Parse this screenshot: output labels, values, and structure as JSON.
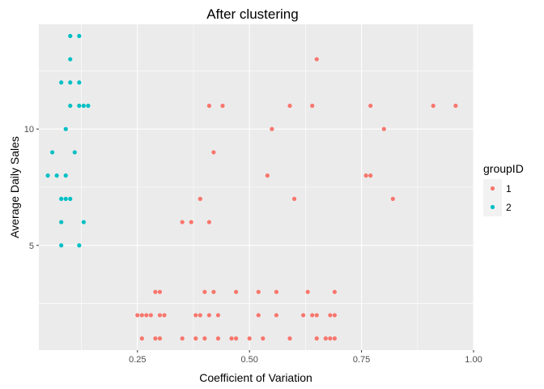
{
  "chart_data": {
    "type": "scatter",
    "title": "After clustering",
    "xlabel": "Coefficient of Variation",
    "ylabel": "Average Daily Sales",
    "xlim": [
      0.03,
      1.0
    ],
    "ylim": [
      0.5,
      14.5
    ],
    "x_ticks": [
      0.25,
      0.5,
      0.75,
      1.0
    ],
    "x_tick_labels": [
      "0.25",
      "0.50",
      "0.75",
      "1.00"
    ],
    "y_ticks": [
      5,
      10
    ],
    "y_tick_labels": [
      "5",
      "10"
    ],
    "grid": true,
    "legend": {
      "title": "groupID",
      "position": "right"
    },
    "series": [
      {
        "name": "1",
        "color": "#F8766D",
        "points": [
          [
            0.65,
            13
          ],
          [
            0.41,
            11
          ],
          [
            0.44,
            11
          ],
          [
            0.59,
            11
          ],
          [
            0.64,
            11
          ],
          [
            0.77,
            11
          ],
          [
            0.91,
            11
          ],
          [
            0.96,
            11
          ],
          [
            0.55,
            10
          ],
          [
            0.8,
            10
          ],
          [
            0.42,
            9
          ],
          [
            0.54,
            8
          ],
          [
            0.76,
            8
          ],
          [
            0.77,
            8
          ],
          [
            0.39,
            7
          ],
          [
            0.6,
            7
          ],
          [
            0.82,
            7
          ],
          [
            0.35,
            6
          ],
          [
            0.37,
            6
          ],
          [
            0.41,
            6
          ],
          [
            0.29,
            3
          ],
          [
            0.3,
            3
          ],
          [
            0.4,
            3
          ],
          [
            0.42,
            3
          ],
          [
            0.47,
            3
          ],
          [
            0.52,
            3
          ],
          [
            0.56,
            3
          ],
          [
            0.63,
            3
          ],
          [
            0.69,
            3
          ],
          [
            0.25,
            2
          ],
          [
            0.26,
            2
          ],
          [
            0.27,
            2
          ],
          [
            0.28,
            2
          ],
          [
            0.3,
            2
          ],
          [
            0.31,
            2
          ],
          [
            0.38,
            2
          ],
          [
            0.39,
            2
          ],
          [
            0.41,
            2
          ],
          [
            0.43,
            2
          ],
          [
            0.52,
            2
          ],
          [
            0.56,
            2
          ],
          [
            0.62,
            2
          ],
          [
            0.64,
            2
          ],
          [
            0.65,
            2
          ],
          [
            0.68,
            2
          ],
          [
            0.69,
            2
          ],
          [
            0.26,
            1
          ],
          [
            0.29,
            1
          ],
          [
            0.3,
            1
          ],
          [
            0.35,
            1
          ],
          [
            0.38,
            1
          ],
          [
            0.4,
            1
          ],
          [
            0.43,
            1
          ],
          [
            0.46,
            1
          ],
          [
            0.47,
            1
          ],
          [
            0.5,
            1
          ],
          [
            0.53,
            1
          ],
          [
            0.59,
            1
          ],
          [
            0.65,
            1
          ],
          [
            0.67,
            1
          ],
          [
            0.68,
            1
          ],
          [
            0.69,
            1
          ]
        ]
      },
      {
        "name": "2",
        "color": "#00BFC4",
        "points": [
          [
            0.1,
            14
          ],
          [
            0.12,
            14
          ],
          [
            0.1,
            13
          ],
          [
            0.08,
            12
          ],
          [
            0.1,
            12
          ],
          [
            0.12,
            12
          ],
          [
            0.1,
            11
          ],
          [
            0.12,
            11
          ],
          [
            0.13,
            11
          ],
          [
            0.14,
            11
          ],
          [
            0.09,
            10
          ],
          [
            0.06,
            9
          ],
          [
            0.11,
            9
          ],
          [
            0.05,
            8
          ],
          [
            0.07,
            8
          ],
          [
            0.09,
            8
          ],
          [
            0.08,
            7
          ],
          [
            0.09,
            7
          ],
          [
            0.1,
            7
          ],
          [
            0.08,
            6
          ],
          [
            0.13,
            6
          ],
          [
            0.08,
            5
          ],
          [
            0.12,
            5
          ]
        ]
      }
    ]
  }
}
